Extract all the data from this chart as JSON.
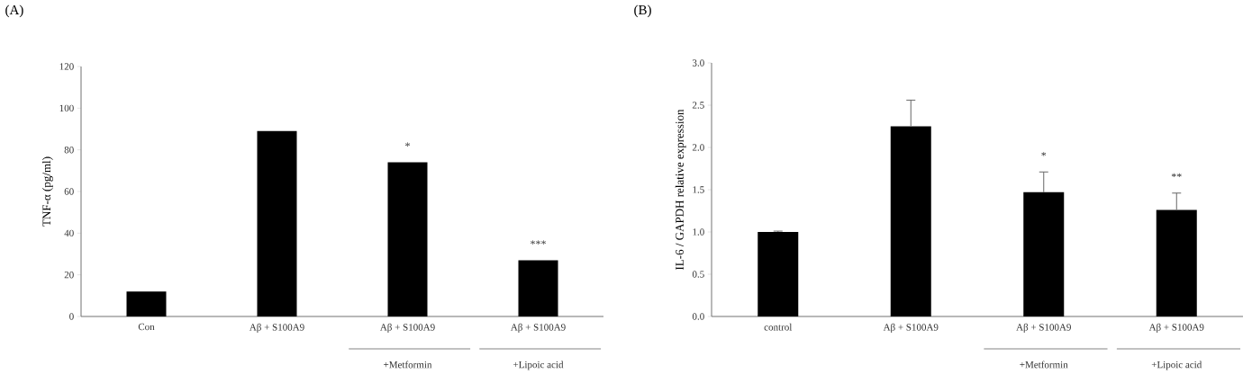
{
  "chart_data": [
    {
      "type": "bar",
      "title": "(A)",
      "ylabel": "TNF-α (pg/ml)",
      "categories": [
        "Con",
        "Aβ + S100A9",
        "Aβ + S100A9",
        "Aβ + S100A9"
      ],
      "values": [
        12,
        89,
        74,
        27
      ],
      "color": "#000000",
      "ylim": [
        0,
        120
      ],
      "yticks": [
        0,
        20,
        40,
        60,
        80,
        100,
        120
      ],
      "annotations": [
        "*",
        "***",
        "+Metformin",
        "+Lipoic acid"
      ]
    },
    {
      "type": "bar",
      "title": "(B)",
      "ylabel": "IL-6 / GAPDH relative expression",
      "categories": [
        "control",
        "Aβ + S100A9",
        "Aβ + S100A9",
        "Aβ + S100A9"
      ],
      "values": [
        1.0,
        2.25,
        1.47,
        1.26
      ],
      "errors": [
        [
          1.0,
          1.01
        ],
        [
          2.25,
          2.56
        ],
        [
          1.47,
          1.71
        ],
        [
          1.26,
          1.46
        ]
      ],
      "color": "#000000",
      "ylim": [
        0,
        3.0
      ],
      "yticks": [
        {
          "value": 0,
          "label": "0.0"
        },
        {
          "value": 0.5,
          "label": "0.5"
        },
        {
          "value": 1,
          "label": "1.0"
        },
        {
          "value": 1.5,
          "label": "1.5"
        },
        {
          "value": 2,
          "label": "2.0"
        },
        {
          "value": 2.5,
          "label": "2.5"
        },
        {
          "value": 3,
          "label": "3.0"
        }
      ],
      "annotations": [
        "*",
        "**",
        "+Metformin",
        "+Lipoic acid"
      ]
    }
  ]
}
